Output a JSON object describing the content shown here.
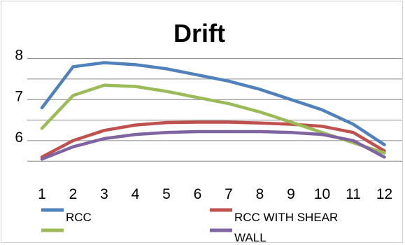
{
  "chart_data": {
    "type": "line",
    "title": "Drift",
    "xlabel": "",
    "ylabel": "",
    "categories": [
      "1",
      "2",
      "3",
      "4",
      "5",
      "6",
      "7",
      "8",
      "9",
      "10",
      "11",
      "12"
    ],
    "y_tick_labels": [
      "6",
      "7",
      "8"
    ],
    "ylim": [
      5.3,
      8.3
    ],
    "grid": true,
    "legend_position": "bottom",
    "series": [
      {
        "name": "RCC",
        "color": "#4f81bd",
        "values": [
          6.8,
          7.8,
          7.9,
          7.85,
          7.75,
          7.6,
          7.45,
          7.25,
          7.0,
          6.75,
          6.4,
          5.9
        ]
      },
      {
        "name": "RCC WITH SHEAR",
        "color": "#c0504d",
        "values": [
          5.6,
          6.0,
          6.25,
          6.38,
          6.44,
          6.45,
          6.45,
          6.43,
          6.4,
          6.35,
          6.2,
          5.75
        ]
      },
      {
        "name": "",
        "color": "#9bbb59",
        "values": [
          6.3,
          7.1,
          7.35,
          7.32,
          7.2,
          7.05,
          6.9,
          6.7,
          6.45,
          6.2,
          5.95,
          5.7
        ]
      },
      {
        "name": "WALL",
        "color": "#8064a2",
        "values": [
          5.55,
          5.85,
          6.05,
          6.15,
          6.2,
          6.22,
          6.22,
          6.22,
          6.2,
          6.15,
          6.0,
          5.6
        ]
      }
    ]
  }
}
